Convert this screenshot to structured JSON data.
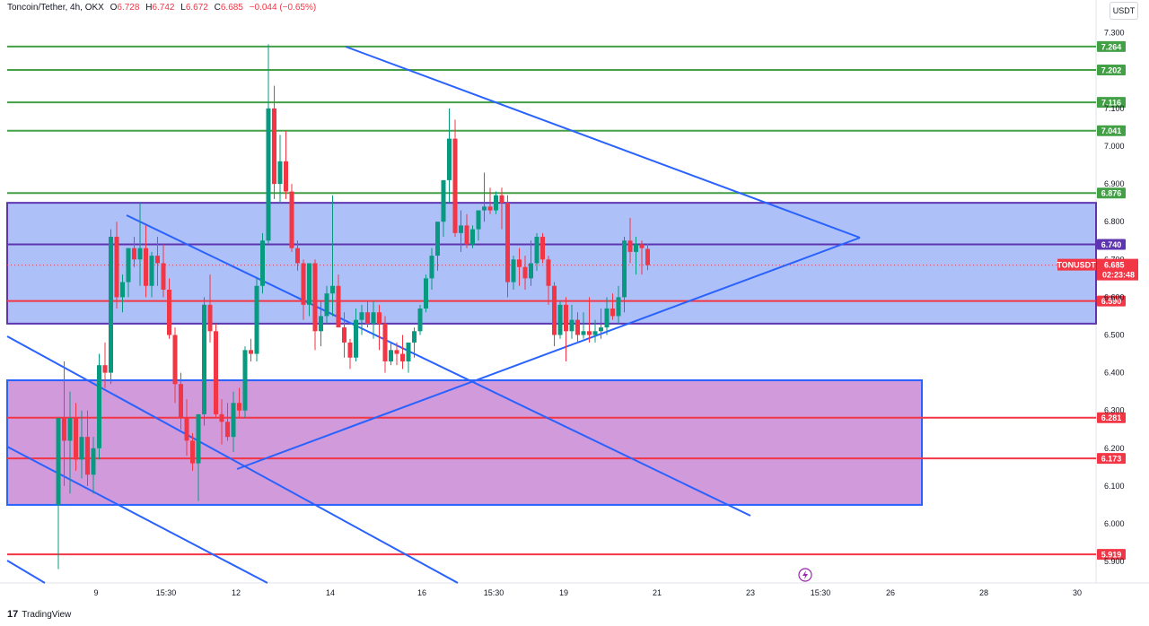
{
  "header": {
    "symbol": "Toncoin/Tether, 4h, OKX",
    "open_label": "O",
    "open": "6.728",
    "high_label": "H",
    "high": "6.742",
    "low_label": "L",
    "low": "6.672",
    "close_label": "C",
    "close": "6.685",
    "change": "−0.044 (−0.65%)"
  },
  "currency_button": "USDT",
  "branding": {
    "logo": "17",
    "name": "TradingView"
  },
  "colors": {
    "up": "#089981",
    "down": "#f23645",
    "trend": "#2962ff",
    "resistance": "#43a047",
    "support": "#f23645",
    "zone_blue": "#a4b9f7",
    "zone_purple": "#cc8fd6",
    "zone_border": "#5e35b1"
  },
  "chart_data": {
    "type": "candlestick",
    "title": "Toncoin/Tether, 4h, OKX",
    "ylim": [
      5.88,
      7.33
    ],
    "y_ticks": [
      "7.300",
      "7.100",
      "7.000",
      "6.900",
      "6.800",
      "6.700",
      "6.600",
      "6.500",
      "6.400",
      "6.300",
      "6.200",
      "6.100",
      "6.000",
      "5.900"
    ],
    "x_labels": [
      "9",
      "15:30",
      "12",
      "14",
      "16",
      "15:30",
      "19",
      "21",
      "23",
      "15:30",
      "26",
      "28",
      "30"
    ],
    "price_label": {
      "symbol": "TONUSDT",
      "price": "6.685",
      "countdown": "02:23:48"
    },
    "horizontal_levels": [
      {
        "value": 7.264,
        "label": "7.264",
        "kind": "resistance"
      },
      {
        "value": 7.202,
        "label": "7.202",
        "kind": "resistance"
      },
      {
        "value": 7.116,
        "label": "7.116",
        "kind": "resistance"
      },
      {
        "value": 7.041,
        "label": "7.041",
        "kind": "resistance"
      },
      {
        "value": 6.876,
        "label": "6.876",
        "kind": "resistance"
      },
      {
        "value": 6.74,
        "label": "6.740",
        "kind": "zone"
      },
      {
        "value": 6.59,
        "label": "6.590",
        "kind": "support"
      },
      {
        "value": 6.281,
        "label": "6.281",
        "kind": "support"
      },
      {
        "value": 6.173,
        "label": "6.173",
        "kind": "support"
      },
      {
        "value": 5.919,
        "label": "5.919",
        "kind": "support"
      }
    ],
    "zones": [
      {
        "name": "blue",
        "top": 6.85,
        "bottom": 6.53
      },
      {
        "name": "purple",
        "top": 6.38,
        "bottom": 6.05
      }
    ],
    "candles": [
      [
        6.05,
        6.28,
        5.88,
        6.28
      ],
      [
        6.28,
        6.43,
        6.1,
        6.22
      ],
      [
        6.22,
        6.35,
        6.08,
        6.28
      ],
      [
        6.28,
        6.32,
        6.14,
        6.17
      ],
      [
        6.17,
        6.3,
        6.12,
        6.23
      ],
      [
        6.23,
        6.3,
        6.1,
        6.13
      ],
      [
        6.13,
        6.23,
        6.08,
        6.2
      ],
      [
        6.2,
        6.45,
        6.17,
        6.42
      ],
      [
        6.42,
        6.48,
        6.36,
        6.4
      ],
      [
        6.4,
        6.78,
        6.37,
        6.76
      ],
      [
        6.76,
        6.8,
        6.57,
        6.6
      ],
      [
        6.6,
        6.66,
        6.56,
        6.64
      ],
      [
        6.64,
        6.73,
        6.6,
        6.73
      ],
      [
        6.73,
        6.76,
        6.68,
        6.7
      ],
      [
        6.7,
        6.85,
        6.63,
        6.73
      ],
      [
        6.73,
        6.79,
        6.6,
        6.63
      ],
      [
        6.63,
        6.72,
        6.6,
        6.71
      ],
      [
        6.71,
        6.76,
        6.63,
        6.69
      ],
      [
        6.69,
        6.74,
        6.6,
        6.62
      ],
      [
        6.62,
        6.65,
        6.49,
        6.5
      ],
      [
        6.5,
        6.52,
        6.32,
        6.37
      ],
      [
        6.37,
        6.4,
        6.25,
        6.28
      ],
      [
        6.28,
        6.33,
        6.18,
        6.22
      ],
      [
        6.22,
        6.24,
        6.14,
        6.16
      ],
      [
        6.16,
        6.28,
        6.06,
        6.29
      ],
      [
        6.29,
        6.6,
        6.26,
        6.58
      ],
      [
        6.58,
        6.66,
        6.48,
        6.51
      ],
      [
        6.51,
        6.53,
        6.28,
        6.29
      ],
      [
        6.29,
        6.33,
        6.21,
        6.27
      ],
      [
        6.27,
        6.32,
        6.22,
        6.23
      ],
      [
        6.23,
        6.35,
        6.19,
        6.32
      ],
      [
        6.32,
        6.36,
        6.28,
        6.3
      ],
      [
        6.3,
        6.47,
        6.28,
        6.46
      ],
      [
        6.46,
        6.49,
        6.43,
        6.45
      ],
      [
        6.45,
        6.65,
        6.43,
        6.63
      ],
      [
        6.63,
        6.77,
        6.61,
        6.75
      ],
      [
        6.75,
        7.27,
        6.74,
        7.1
      ],
      [
        7.1,
        7.16,
        6.86,
        6.9
      ],
      [
        6.9,
        7.03,
        6.85,
        6.96
      ],
      [
        6.96,
        7.04,
        6.86,
        6.88
      ],
      [
        6.88,
        6.9,
        6.72,
        6.73
      ],
      [
        6.73,
        6.75,
        6.67,
        6.69
      ],
      [
        6.69,
        6.7,
        6.54,
        6.58
      ],
      [
        6.58,
        6.69,
        6.55,
        6.69
      ],
      [
        6.69,
        6.7,
        6.46,
        6.51
      ],
      [
        6.51,
        6.59,
        6.47,
        6.55
      ],
      [
        6.55,
        6.63,
        6.53,
        6.61
      ],
      [
        6.61,
        6.87,
        6.55,
        6.63
      ],
      [
        6.63,
        6.66,
        6.52,
        6.52
      ],
      [
        6.52,
        6.56,
        6.44,
        6.48
      ],
      [
        6.48,
        6.49,
        6.41,
        6.44
      ],
      [
        6.44,
        6.57,
        6.43,
        6.54
      ],
      [
        6.54,
        6.58,
        6.5,
        6.56
      ],
      [
        6.56,
        6.59,
        6.52,
        6.53
      ],
      [
        6.53,
        6.59,
        6.49,
        6.56
      ],
      [
        6.56,
        6.58,
        6.46,
        6.53
      ],
      [
        6.53,
        6.55,
        6.4,
        6.43
      ],
      [
        6.43,
        6.48,
        6.42,
        6.46
      ],
      [
        6.46,
        6.48,
        6.42,
        6.45
      ],
      [
        6.45,
        6.5,
        6.41,
        6.43
      ],
      [
        6.43,
        6.47,
        6.4,
        6.48
      ],
      [
        6.48,
        6.52,
        6.44,
        6.51
      ],
      [
        6.51,
        6.58,
        6.5,
        6.57
      ],
      [
        6.57,
        6.66,
        6.56,
        6.65
      ],
      [
        6.65,
        6.73,
        6.62,
        6.71
      ],
      [
        6.71,
        6.8,
        6.67,
        6.8
      ],
      [
        6.8,
        6.91,
        6.76,
        6.91
      ],
      [
        6.91,
        7.1,
        6.85,
        7.02
      ],
      [
        7.02,
        7.07,
        6.76,
        6.77
      ],
      [
        6.77,
        6.83,
        6.72,
        6.79
      ],
      [
        6.79,
        6.82,
        6.73,
        6.74
      ],
      [
        6.74,
        6.79,
        6.73,
        6.78
      ],
      [
        6.78,
        6.83,
        6.75,
        6.83
      ],
      [
        6.83,
        6.93,
        6.8,
        6.84
      ],
      [
        6.84,
        6.89,
        6.82,
        6.83
      ],
      [
        6.83,
        6.88,
        6.82,
        6.87
      ],
      [
        6.87,
        6.89,
        6.78,
        6.85
      ],
      [
        6.85,
        6.87,
        6.6,
        6.64
      ],
      [
        6.64,
        6.71,
        6.62,
        6.7
      ],
      [
        6.7,
        6.73,
        6.63,
        6.68
      ],
      [
        6.68,
        6.71,
        6.62,
        6.65
      ],
      [
        6.65,
        6.75,
        6.63,
        6.69
      ],
      [
        6.69,
        6.77,
        6.67,
        6.76
      ],
      [
        6.76,
        6.77,
        6.69,
        6.7
      ],
      [
        6.7,
        6.71,
        6.58,
        6.63
      ],
      [
        6.63,
        6.64,
        6.47,
        6.5
      ],
      [
        6.5,
        6.59,
        6.49,
        6.58
      ],
      [
        6.58,
        6.6,
        6.43,
        6.51
      ],
      [
        6.51,
        6.58,
        6.49,
        6.54
      ],
      [
        6.54,
        6.56,
        6.48,
        6.5
      ],
      [
        6.5,
        6.56,
        6.49,
        6.51
      ],
      [
        6.51,
        6.6,
        6.48,
        6.5
      ],
      [
        6.5,
        6.54,
        6.48,
        6.51
      ],
      [
        6.51,
        6.57,
        6.49,
        6.52
      ],
      [
        6.52,
        6.6,
        6.5,
        6.57
      ],
      [
        6.57,
        6.61,
        6.54,
        6.55
      ],
      [
        6.55,
        6.63,
        6.53,
        6.6
      ],
      [
        6.6,
        6.76,
        6.56,
        6.75
      ],
      [
        6.75,
        6.81,
        6.69,
        6.72
      ],
      [
        6.72,
        6.76,
        6.66,
        6.74
      ],
      [
        6.74,
        6.75,
        6.66,
        6.73
      ],
      [
        6.728,
        6.742,
        6.672,
        6.685
      ]
    ]
  }
}
